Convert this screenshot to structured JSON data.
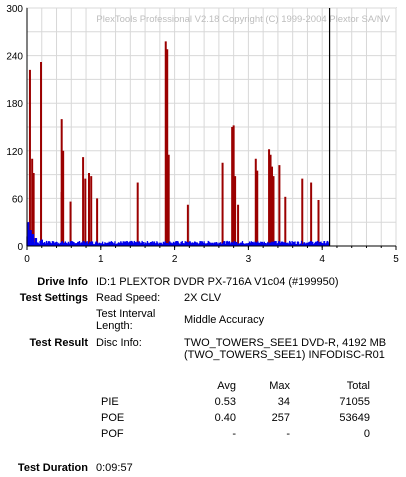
{
  "chart_data": {
    "type": "bar",
    "watermark": "PlexTools Professional V2.18 Copyright (C) 1999-2004 Plextor SA/NV",
    "xlim": [
      0,
      5
    ],
    "ylim": [
      0,
      300
    ],
    "x_ticks": [
      "0",
      "1",
      "2",
      "3",
      "4",
      "5"
    ],
    "y_ticks": [
      "0",
      "60",
      "120",
      "180",
      "240",
      "300"
    ],
    "grid": true,
    "end_marker_x": 4.1,
    "series": [
      {
        "color": "#9b0000",
        "points": [
          {
            "x": 0.04,
            "y": 222
          },
          {
            "x": 0.07,
            "y": 110
          },
          {
            "x": 0.09,
            "y": 92
          },
          {
            "x": 0.19,
            "y": 232
          },
          {
            "x": 0.47,
            "y": 160
          },
          {
            "x": 0.49,
            "y": 120
          },
          {
            "x": 0.47,
            "y": 68
          },
          {
            "x": 0.59,
            "y": 56
          },
          {
            "x": 0.76,
            "y": 112
          },
          {
            "x": 0.79,
            "y": 85
          },
          {
            "x": 0.84,
            "y": 92
          },
          {
            "x": 0.87,
            "y": 88
          },
          {
            "x": 0.95,
            "y": 60
          },
          {
            "x": 1.5,
            "y": 80
          },
          {
            "x": 1.88,
            "y": 258
          },
          {
            "x": 1.9,
            "y": 248
          },
          {
            "x": 1.92,
            "y": 115
          },
          {
            "x": 2.18,
            "y": 52
          },
          {
            "x": 2.65,
            "y": 105
          },
          {
            "x": 2.78,
            "y": 150
          },
          {
            "x": 2.8,
            "y": 152
          },
          {
            "x": 2.82,
            "y": 88
          },
          {
            "x": 2.86,
            "y": 52
          },
          {
            "x": 3.1,
            "y": 110
          },
          {
            "x": 3.12,
            "y": 95
          },
          {
            "x": 3.28,
            "y": 122
          },
          {
            "x": 3.3,
            "y": 115
          },
          {
            "x": 3.32,
            "y": 100
          },
          {
            "x": 3.34,
            "y": 88
          },
          {
            "x": 3.42,
            "y": 102
          },
          {
            "x": 3.5,
            "y": 62
          },
          {
            "x": 3.73,
            "y": 85
          },
          {
            "x": 3.85,
            "y": 80
          },
          {
            "x": 3.95,
            "y": 58
          }
        ]
      },
      {
        "color": "#0000ee",
        "baseline_y": 5,
        "points": [
          {
            "x": 0.0,
            "y": 12
          },
          {
            "x": 0.02,
            "y": 30
          },
          {
            "x": 0.05,
            "y": 20
          },
          {
            "x": 0.08,
            "y": 15
          },
          {
            "x": 0.12,
            "y": 10
          },
          {
            "x": 0.2,
            "y": 8
          },
          {
            "x": 0.3,
            "y": 6
          }
        ]
      }
    ]
  },
  "info": {
    "drive_label": "Drive Info",
    "drive_value": "ID:1 PLEXTOR DVDR PX-716A V1c04 (#199950)",
    "settings_label": "Test Settings",
    "read_speed_label": "Read Speed:",
    "read_speed_value": "2X CLV",
    "interval_label_1": "Test Interval",
    "interval_label_2": "Length:",
    "interval_value": "Middle Accuracy",
    "result_label": "Test Result",
    "disc_info_label": "Disc Info:",
    "disc_info_line1": "TWO_TOWERS_SEE1 DVD-R, 4192 MB",
    "disc_info_line2": "(TWO_TOWERS_SEE1) INFODISC-R01",
    "col_avg": "Avg",
    "col_max": "Max",
    "col_total": "Total",
    "rows": [
      {
        "name": "PIE",
        "avg": "0.53",
        "max": "34",
        "total": "71055"
      },
      {
        "name": "POE",
        "avg": "0.40",
        "max": "257",
        "total": "53649"
      },
      {
        "name": "POF",
        "avg": "-",
        "max": "-",
        "total": "0"
      }
    ],
    "duration_label": "Test Duration",
    "duration_value": "0:09:57"
  }
}
